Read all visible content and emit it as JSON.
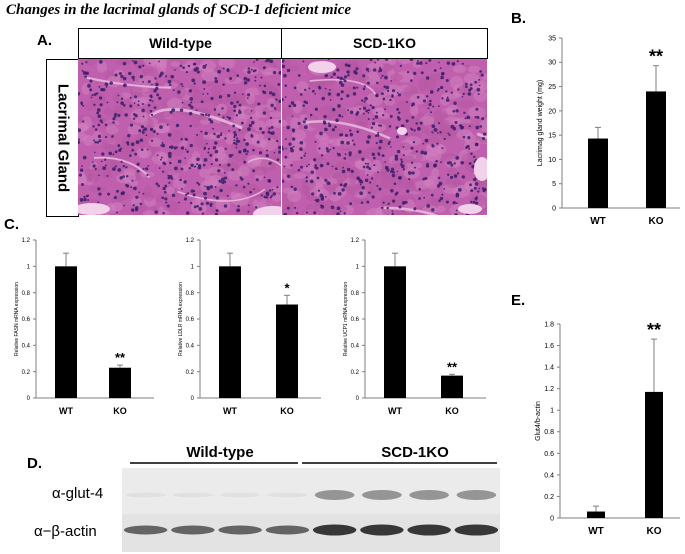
{
  "figure": {
    "title": "Changes in the lacrimal glands of SCD-1 deficient mice",
    "panel_a": {
      "label": "A.",
      "headers": [
        "Wild-type",
        "SCD-1KO"
      ],
      "row_label": "Lacrimal Gland"
    },
    "panel_b_label": "B.",
    "panel_c_label": "C.",
    "panel_d": {
      "label": "D.",
      "headers": [
        "Wild-type",
        "SCD-1KO"
      ],
      "rows": [
        "α-glut-4",
        "α−β-actin"
      ],
      "lanes_per_group": 4
    },
    "panel_e_label": "E."
  },
  "colors": {
    "bar": "#000000",
    "tissue_bg": "#c05fae",
    "tissue_stroma": "#e6b7dc",
    "nuclei": "#3a1d6a",
    "blot_bg": "#e8e8e8",
    "band": "#2d2d2d"
  },
  "chart_data": [
    {
      "panel": "B",
      "type": "bar",
      "categories": [
        "WT",
        "KO"
      ],
      "values": [
        14.3,
        24
      ],
      "errors": [
        2.3,
        5.3
      ],
      "significance": [
        "",
        "**"
      ],
      "ylabel": "Lacrimag gland weight (mg)",
      "ylim": [
        0,
        35
      ],
      "yticks": [
        "0",
        "5",
        "10",
        "15",
        "20",
        "25",
        "30",
        "35"
      ],
      "grid": false
    },
    {
      "panel": "C1",
      "type": "bar",
      "categories": [
        "WT",
        "KO"
      ],
      "values": [
        1,
        0.23
      ],
      "errors": [
        0.1,
        0.02
      ],
      "significance": [
        "",
        "**"
      ],
      "ylabel": "Relative FASN mRNA expression",
      "ylim": [
        0,
        1.2
      ],
      "yticks": [
        "0",
        "0.2",
        "0.4",
        "0.6",
        "0.8",
        "1",
        "1.2"
      ],
      "grid": false
    },
    {
      "panel": "C2",
      "type": "bar",
      "categories": [
        "WT",
        "KO"
      ],
      "values": [
        1,
        0.71
      ],
      "errors": [
        0.1,
        0.07
      ],
      "significance": [
        "",
        "*"
      ],
      "ylabel": "Relative LDLR mRNA expression",
      "ylim": [
        0,
        1.2
      ],
      "yticks": [
        "0",
        "0.2",
        "0.4",
        "0.6",
        "0.8",
        "1",
        "1.2"
      ],
      "grid": false
    },
    {
      "panel": "C3",
      "type": "bar",
      "categories": [
        "WT",
        "KO"
      ],
      "values": [
        1,
        0.17
      ],
      "errors": [
        0.1,
        0.01
      ],
      "significance": [
        "",
        "**"
      ],
      "ylabel": "Relative UCP1 mRNA expression",
      "ylim": [
        0,
        1.2
      ],
      "yticks": [
        "0",
        "0.2",
        "0.4",
        "0.6",
        "0.8",
        "1",
        "1.2"
      ],
      "grid": false
    },
    {
      "panel": "E",
      "type": "bar",
      "categories": [
        "WT",
        "KO"
      ],
      "values": [
        0.06,
        1.17
      ],
      "errors": [
        0.05,
        0.49
      ],
      "significance": [
        "",
        "**"
      ],
      "ylabel": "Glut4/b-actin",
      "ylim": [
        0,
        1.8
      ],
      "yticks": [
        "0",
        "0.2",
        "0.4",
        "0.6",
        "0.8",
        "1",
        "1.2",
        "1.4",
        "1.6",
        "1.8"
      ],
      "grid": false
    }
  ]
}
